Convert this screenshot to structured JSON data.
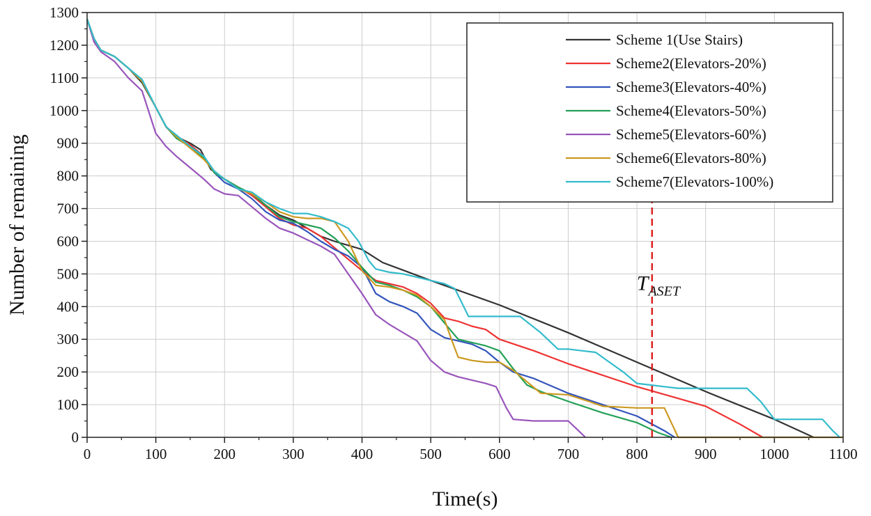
{
  "chart_data": {
    "type": "line",
    "title": "",
    "xlabel": "Time(s)",
    "ylabel": "Number of remaining",
    "xlim": [
      0,
      1100
    ],
    "ylim": [
      0,
      1300
    ],
    "x_ticks": [
      0,
      100,
      200,
      300,
      400,
      500,
      600,
      700,
      800,
      900,
      1000,
      1100
    ],
    "y_ticks": [
      0,
      100,
      200,
      300,
      400,
      500,
      600,
      700,
      800,
      900,
      1000,
      1100,
      1200,
      1300
    ],
    "grid": true,
    "legend_position": "top-right",
    "series": [
      {
        "name": "Scheme 1(Use Stairs)",
        "color": "#333333",
        "points": [
          [
            0,
            1280
          ],
          [
            10,
            1220
          ],
          [
            20,
            1185
          ],
          [
            40,
            1165
          ],
          [
            60,
            1130
          ],
          [
            80,
            1085
          ],
          [
            100,
            1010
          ],
          [
            115,
            950
          ],
          [
            130,
            920
          ],
          [
            150,
            900
          ],
          [
            165,
            880
          ],
          [
            180,
            820
          ],
          [
            200,
            790
          ],
          [
            220,
            765
          ],
          [
            240,
            745
          ],
          [
            260,
            710
          ],
          [
            280,
            680
          ],
          [
            300,
            665
          ],
          [
            320,
            640
          ],
          [
            340,
            615
          ],
          [
            360,
            600
          ],
          [
            400,
            575
          ],
          [
            430,
            535
          ],
          [
            500,
            480
          ],
          [
            600,
            405
          ],
          [
            700,
            320
          ],
          [
            800,
            230
          ],
          [
            900,
            140
          ],
          [
            1000,
            55
          ],
          [
            1057,
            0
          ]
        ]
      },
      {
        "name": "Scheme2(Elevators-20%)",
        "color": "#ee3333",
        "points": [
          [
            0,
            1280
          ],
          [
            10,
            1220
          ],
          [
            20,
            1185
          ],
          [
            40,
            1165
          ],
          [
            60,
            1130
          ],
          [
            80,
            1090
          ],
          [
            100,
            1010
          ],
          [
            115,
            950
          ],
          [
            130,
            920
          ],
          [
            150,
            895
          ],
          [
            170,
            860
          ],
          [
            185,
            810
          ],
          [
            200,
            790
          ],
          [
            220,
            765
          ],
          [
            240,
            740
          ],
          [
            260,
            705
          ],
          [
            280,
            670
          ],
          [
            300,
            650
          ],
          [
            320,
            640
          ],
          [
            340,
            615
          ],
          [
            360,
            580
          ],
          [
            380,
            545
          ],
          [
            400,
            510
          ],
          [
            420,
            480
          ],
          [
            440,
            470
          ],
          [
            460,
            460
          ],
          [
            480,
            440
          ],
          [
            500,
            410
          ],
          [
            520,
            365
          ],
          [
            540,
            355
          ],
          [
            560,
            340
          ],
          [
            580,
            330
          ],
          [
            600,
            300
          ],
          [
            650,
            265
          ],
          [
            700,
            225
          ],
          [
            750,
            190
          ],
          [
            800,
            155
          ],
          [
            850,
            125
          ],
          [
            900,
            95
          ],
          [
            950,
            40
          ],
          [
            983,
            0
          ]
        ]
      },
      {
        "name": "Scheme3(Elevators-40%)",
        "color": "#3355bb",
        "points": [
          [
            0,
            1280
          ],
          [
            10,
            1220
          ],
          [
            20,
            1185
          ],
          [
            40,
            1165
          ],
          [
            60,
            1130
          ],
          [
            80,
            1090
          ],
          [
            100,
            1010
          ],
          [
            115,
            950
          ],
          [
            130,
            920
          ],
          [
            150,
            890
          ],
          [
            170,
            860
          ],
          [
            185,
            810
          ],
          [
            200,
            780
          ],
          [
            220,
            760
          ],
          [
            240,
            730
          ],
          [
            260,
            690
          ],
          [
            280,
            665
          ],
          [
            300,
            655
          ],
          [
            320,
            630
          ],
          [
            340,
            600
          ],
          [
            360,
            575
          ],
          [
            380,
            555
          ],
          [
            400,
            520
          ],
          [
            420,
            440
          ],
          [
            440,
            415
          ],
          [
            460,
            400
          ],
          [
            480,
            380
          ],
          [
            500,
            330
          ],
          [
            520,
            305
          ],
          [
            540,
            295
          ],
          [
            560,
            285
          ],
          [
            580,
            265
          ],
          [
            600,
            230
          ],
          [
            620,
            200
          ],
          [
            650,
            180
          ],
          [
            700,
            135
          ],
          [
            750,
            100
          ],
          [
            800,
            65
          ],
          [
            840,
            20
          ],
          [
            855,
            0
          ]
        ]
      },
      {
        "name": "Scheme4(Elevators-50%)",
        "color": "#22a055",
        "points": [
          [
            0,
            1280
          ],
          [
            10,
            1220
          ],
          [
            20,
            1185
          ],
          [
            40,
            1165
          ],
          [
            60,
            1130
          ],
          [
            80,
            1090
          ],
          [
            100,
            1010
          ],
          [
            115,
            950
          ],
          [
            130,
            915
          ],
          [
            150,
            890
          ],
          [
            170,
            855
          ],
          [
            185,
            810
          ],
          [
            200,
            790
          ],
          [
            220,
            765
          ],
          [
            240,
            745
          ],
          [
            260,
            710
          ],
          [
            280,
            675
          ],
          [
            300,
            660
          ],
          [
            320,
            650
          ],
          [
            340,
            640
          ],
          [
            360,
            610
          ],
          [
            380,
            570
          ],
          [
            400,
            520
          ],
          [
            420,
            475
          ],
          [
            440,
            465
          ],
          [
            460,
            450
          ],
          [
            480,
            430
          ],
          [
            500,
            400
          ],
          [
            520,
            350
          ],
          [
            540,
            300
          ],
          [
            560,
            290
          ],
          [
            580,
            280
          ],
          [
            600,
            265
          ],
          [
            620,
            210
          ],
          [
            640,
            160
          ],
          [
            660,
            140
          ],
          [
            700,
            110
          ],
          [
            750,
            75
          ],
          [
            800,
            45
          ],
          [
            830,
            15
          ],
          [
            850,
            0
          ]
        ]
      },
      {
        "name": "Scheme5(Elevators-60%)",
        "color": "#9955bb",
        "points": [
          [
            0,
            1280
          ],
          [
            10,
            1210
          ],
          [
            20,
            1180
          ],
          [
            40,
            1150
          ],
          [
            60,
            1100
          ],
          [
            80,
            1060
          ],
          [
            100,
            930
          ],
          [
            115,
            890
          ],
          [
            130,
            860
          ],
          [
            150,
            825
          ],
          [
            170,
            790
          ],
          [
            185,
            760
          ],
          [
            200,
            745
          ],
          [
            220,
            740
          ],
          [
            240,
            705
          ],
          [
            260,
            670
          ],
          [
            280,
            640
          ],
          [
            300,
            625
          ],
          [
            320,
            605
          ],
          [
            340,
            585
          ],
          [
            360,
            560
          ],
          [
            380,
            500
          ],
          [
            400,
            440
          ],
          [
            420,
            375
          ],
          [
            440,
            345
          ],
          [
            460,
            320
          ],
          [
            480,
            295
          ],
          [
            500,
            235
          ],
          [
            520,
            200
          ],
          [
            540,
            185
          ],
          [
            560,
            175
          ],
          [
            580,
            165
          ],
          [
            595,
            155
          ],
          [
            610,
            90
          ],
          [
            620,
            55
          ],
          [
            650,
            50
          ],
          [
            700,
            50
          ],
          [
            715,
            20
          ],
          [
            725,
            0
          ]
        ]
      },
      {
        "name": "Scheme6(Elevators-80%)",
        "color": "#cc9922",
        "points": [
          [
            0,
            1280
          ],
          [
            10,
            1220
          ],
          [
            20,
            1185
          ],
          [
            40,
            1165
          ],
          [
            60,
            1130
          ],
          [
            80,
            1090
          ],
          [
            100,
            1010
          ],
          [
            115,
            950
          ],
          [
            130,
            920
          ],
          [
            150,
            885
          ],
          [
            170,
            850
          ],
          [
            185,
            815
          ],
          [
            200,
            790
          ],
          [
            220,
            760
          ],
          [
            240,
            745
          ],
          [
            260,
            720
          ],
          [
            280,
            690
          ],
          [
            300,
            675
          ],
          [
            320,
            670
          ],
          [
            340,
            670
          ],
          [
            360,
            660
          ],
          [
            380,
            600
          ],
          [
            400,
            510
          ],
          [
            420,
            465
          ],
          [
            440,
            460
          ],
          [
            460,
            450
          ],
          [
            480,
            435
          ],
          [
            500,
            400
          ],
          [
            520,
            360
          ],
          [
            530,
            300
          ],
          [
            540,
            245
          ],
          [
            560,
            235
          ],
          [
            580,
            230
          ],
          [
            600,
            230
          ],
          [
            620,
            205
          ],
          [
            640,
            170
          ],
          [
            660,
            135
          ],
          [
            700,
            130
          ],
          [
            730,
            110
          ],
          [
            750,
            95
          ],
          [
            800,
            90
          ],
          [
            840,
            90
          ],
          [
            860,
            0
          ],
          [
            900,
            0
          ],
          [
            1000,
            0
          ],
          [
            1100,
            0
          ]
        ]
      },
      {
        "name": "Scheme7(Elevators-100%)",
        "color": "#33bbcc",
        "points": [
          [
            0,
            1280
          ],
          [
            10,
            1220
          ],
          [
            20,
            1185
          ],
          [
            40,
            1165
          ],
          [
            60,
            1130
          ],
          [
            80,
            1095
          ],
          [
            100,
            1010
          ],
          [
            115,
            950
          ],
          [
            130,
            925
          ],
          [
            150,
            890
          ],
          [
            170,
            860
          ],
          [
            185,
            815
          ],
          [
            200,
            790
          ],
          [
            220,
            760
          ],
          [
            240,
            750
          ],
          [
            260,
            720
          ],
          [
            280,
            700
          ],
          [
            300,
            685
          ],
          [
            320,
            685
          ],
          [
            340,
            675
          ],
          [
            360,
            660
          ],
          [
            380,
            640
          ],
          [
            395,
            600
          ],
          [
            410,
            540
          ],
          [
            420,
            515
          ],
          [
            440,
            505
          ],
          [
            460,
            500
          ],
          [
            480,
            490
          ],
          [
            500,
            480
          ],
          [
            520,
            470
          ],
          [
            535,
            455
          ],
          [
            555,
            370
          ],
          [
            580,
            370
          ],
          [
            600,
            370
          ],
          [
            630,
            370
          ],
          [
            660,
            320
          ],
          [
            685,
            270
          ],
          [
            700,
            270
          ],
          [
            720,
            265
          ],
          [
            740,
            260
          ],
          [
            760,
            230
          ],
          [
            780,
            200
          ],
          [
            800,
            165
          ],
          [
            820,
            160
          ],
          [
            840,
            155
          ],
          [
            860,
            150
          ],
          [
            900,
            150
          ],
          [
            960,
            150
          ],
          [
            980,
            110
          ],
          [
            1000,
            55
          ],
          [
            1050,
            55
          ],
          [
            1070,
            55
          ],
          [
            1085,
            20
          ],
          [
            1095,
            0
          ]
        ]
      }
    ],
    "annotations": [
      {
        "type": "vline",
        "x": 822,
        "y_from": 0,
        "y_to": 725,
        "color": "#dd2222",
        "style": "dashed"
      },
      {
        "type": "text",
        "x": 822,
        "y": 440,
        "main": "T",
        "sub": "ASET"
      }
    ]
  }
}
